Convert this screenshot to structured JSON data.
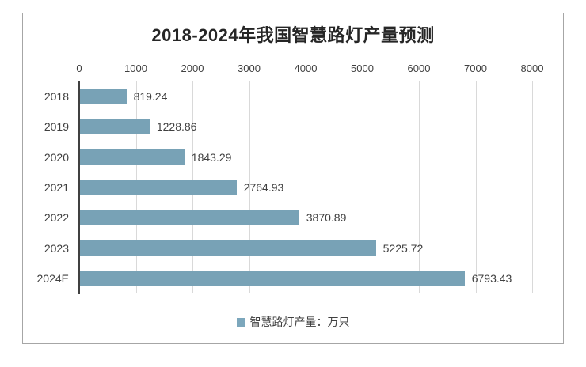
{
  "frame": {
    "background": "#FFFFFF",
    "border_color": "#A6A6A6"
  },
  "chart_data": {
    "type": "bar",
    "orientation": "horizontal",
    "title": "2018-2024年我国智慧路灯产量预测",
    "categories": [
      "2018",
      "2019",
      "2020",
      "2021",
      "2022",
      "2023",
      "2024E"
    ],
    "values": [
      819.24,
      1228.86,
      1843.29,
      2764.93,
      3870.89,
      5225.72,
      6793.43
    ],
    "value_labels": [
      "819.24",
      "1228.86",
      "1843.29",
      "2764.93",
      "3870.89",
      "5225.72",
      "6793.43"
    ],
    "axis": {
      "position": "top",
      "min": 0,
      "max": 8000,
      "step": 1000,
      "tick_labels": [
        "0",
        "1000",
        "2000",
        "3000",
        "4000",
        "5000",
        "6000",
        "7000",
        "8000"
      ]
    },
    "legend": {
      "label": "智慧路灯产量：万只",
      "position": "bottom",
      "marker_color": "#7CA7BC"
    },
    "bar_color": "#78A2B6",
    "gridlines": true,
    "gridline_color": "#D9D9D9",
    "axis_line_color": "#404040",
    "text_color": "#404040",
    "title_color": "#262626"
  }
}
